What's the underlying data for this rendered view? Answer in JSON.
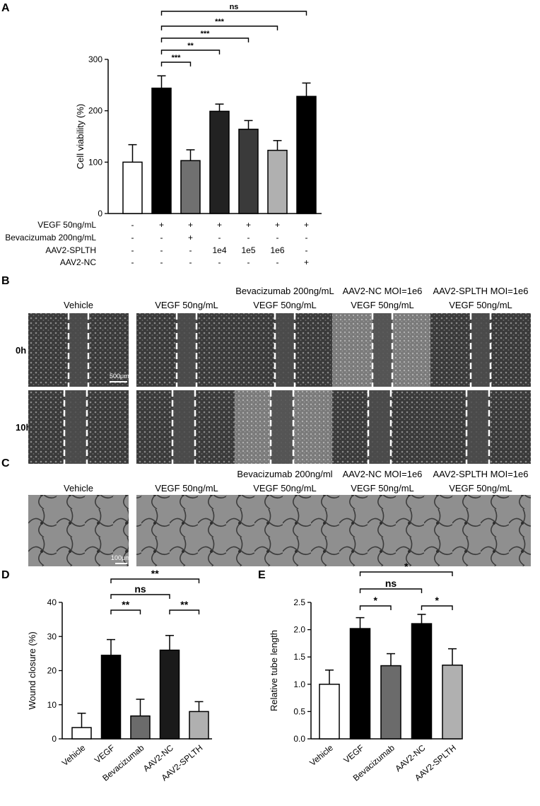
{
  "panels": {
    "A": "A",
    "B": "B",
    "C": "C",
    "D": "D",
    "E": "E"
  },
  "chart_data": [
    {
      "panel": "A",
      "type": "bar",
      "ylabel": "Cell viability (%)",
      "ylim": [
        0,
        300
      ],
      "yticks": [
        "0",
        "100",
        "200",
        "300"
      ],
      "bar_colors": [
        "#ffffff",
        "#000000",
        "#707070",
        "#222222",
        "#3a3a3a",
        "#b0b0b0",
        "#000000"
      ],
      "values": [
        100,
        244,
        103,
        199,
        164,
        123,
        228
      ],
      "errors": [
        34,
        24,
        21,
        14,
        17,
        19,
        26
      ],
      "condition_table": {
        "row_labels": [
          "VEGF 50ng/mL",
          "Bevacizumab 200ng/mL",
          "AAV2-SPLTH",
          "AAV2-NC"
        ],
        "rows": [
          [
            "-",
            "+",
            "+",
            "+",
            "+",
            "+",
            "+"
          ],
          [
            "-",
            "-",
            "+",
            "-",
            "-",
            "-",
            "-"
          ],
          [
            "-",
            "-",
            "-",
            "1e4",
            "1e5",
            "1e6",
            "-"
          ],
          [
            "-",
            "-",
            "-",
            "-",
            "-",
            "-",
            "+"
          ]
        ]
      },
      "significance": [
        {
          "from": 1,
          "to": 2,
          "label": "***"
        },
        {
          "from": 1,
          "to": 3,
          "label": "**"
        },
        {
          "from": 1,
          "to": 4,
          "label": "***"
        },
        {
          "from": 1,
          "to": 5,
          "label": "***"
        },
        {
          "from": 1,
          "to": 6,
          "label": "ns"
        }
      ]
    },
    {
      "panel": "D",
      "type": "bar",
      "ylabel": "Wound closure (%)",
      "ylim": [
        0,
        40
      ],
      "yticks": [
        "0",
        "10",
        "20",
        "30",
        "40"
      ],
      "categories": [
        "Vehicle",
        "VEGF",
        "Bevacizumab",
        "AAV2-NC",
        "AAV2-SPLTH"
      ],
      "bar_colors": [
        "#ffffff",
        "#000000",
        "#6b6b6b",
        "#1a1a1a",
        "#b0b0b0"
      ],
      "values": [
        3.3,
        24.5,
        6.7,
        26.0,
        8.0
      ],
      "errors": [
        4.2,
        4.6,
        4.9,
        4.3,
        2.9
      ],
      "significance": [
        {
          "from": 1,
          "to": 2,
          "label": "**"
        },
        {
          "from": 3,
          "to": 4,
          "label": "**"
        },
        {
          "from": 1,
          "to": 3,
          "label": "ns"
        },
        {
          "from": 1,
          "to": 4,
          "label": "**"
        }
      ]
    },
    {
      "panel": "E",
      "type": "bar",
      "ylabel": "Relative tube length",
      "ylim": [
        0,
        2.5
      ],
      "yticks": [
        "0.0",
        "0.5",
        "1.0",
        "1.5",
        "2.0",
        "2.5"
      ],
      "categories": [
        "Vehicle",
        "VEGF",
        "Bevacizumab",
        "AAV2-NC",
        "AAV2-SPLTH"
      ],
      "bar_colors": [
        "#ffffff",
        "#000000",
        "#6b6b6b",
        "#000000",
        "#b0b0b0"
      ],
      "values": [
        1.0,
        2.02,
        1.34,
        2.11,
        1.35
      ],
      "errors": [
        0.26,
        0.2,
        0.22,
        0.17,
        0.3
      ],
      "significance": [
        {
          "from": 1,
          "to": 2,
          "label": "*"
        },
        {
          "from": 3,
          "to": 4,
          "label": "*"
        },
        {
          "from": 1,
          "to": 3,
          "label": "ns"
        },
        {
          "from": 1,
          "to": 4,
          "label": "*"
        }
      ]
    }
  ],
  "panelB": {
    "columns": [
      {
        "line1": "",
        "line2": "Vehicle"
      },
      {
        "line1": "",
        "line2": "VEGF 50ng/mL"
      },
      {
        "line1": "Bevacizumab 200ng/mL",
        "line2": "VEGF 50ng/mL"
      },
      {
        "line1": "AAV2-NC MOI=1e6",
        "line2": "VEGF 50ng/mL"
      },
      {
        "line1": "AAV2-SPLTH MOI=1e6",
        "line2": "VEGF 50ng/mL"
      }
    ],
    "rows": [
      "0h",
      "10h"
    ],
    "scale_bar": "500μm"
  },
  "panelC": {
    "columns": [
      {
        "line1": "",
        "line2": "Vehicle"
      },
      {
        "line1": "",
        "line2": "VEGF 50ng/mL"
      },
      {
        "line1": "Bevacizumab 200ng/ml",
        "line2": "VEGF 50ng/mL"
      },
      {
        "line1": "AAV2-NC MOI=1e6",
        "line2": "VEGF 50ng/mL"
      },
      {
        "line1": "AAV2-SPLTH MOI=1e6",
        "line2": "VEGF 50ng/mL"
      }
    ],
    "scale_bar": "100μm"
  }
}
